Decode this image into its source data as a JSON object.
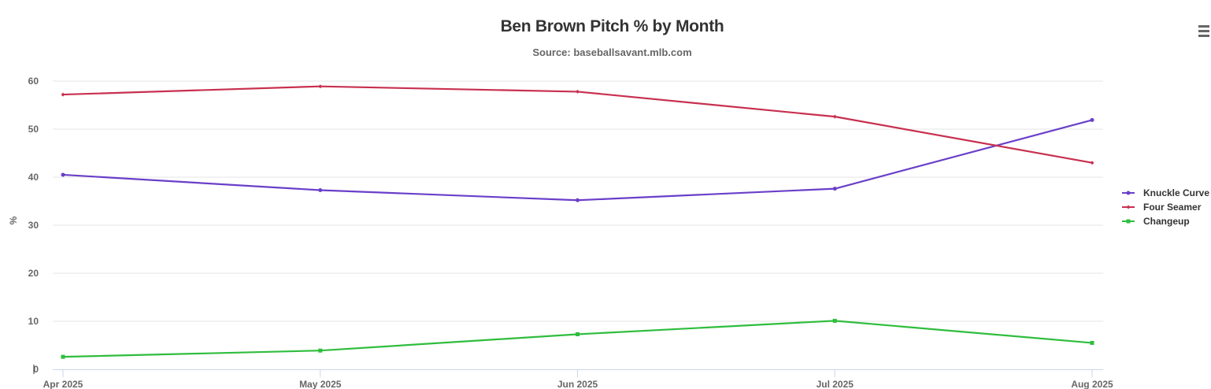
{
  "chart_data": {
    "type": "line",
    "title": "Ben Brown Pitch % by Month",
    "subtitle": "Source: baseballsavant.mlb.com",
    "ylabel": "%",
    "xlabel": "",
    "categories": [
      "Apr 2025",
      "May 2025",
      "Jun 2025",
      "Jul 2025",
      "Aug 2025"
    ],
    "ylim": [
      0,
      60
    ],
    "yticks": [
      0,
      10,
      20,
      30,
      40,
      50,
      60
    ],
    "grid": true,
    "legend": "right",
    "series": [
      {
        "name": "Knuckle Curve",
        "color": "#6a3fc9",
        "marker": "circle",
        "values": [
          40.5,
          37.3,
          35.2,
          37.6,
          51.9
        ]
      },
      {
        "name": "Four Seamer",
        "color": "#c8304f",
        "marker": "diamond",
        "values": [
          57.2,
          58.9,
          57.8,
          52.6,
          43.0
        ]
      },
      {
        "name": "Changeup",
        "color": "#2fbd3d",
        "marker": "square",
        "values": [
          2.6,
          3.9,
          7.3,
          10.1,
          5.5
        ]
      }
    ]
  },
  "ui": {
    "menu_icon": "hamburger-menu-icon"
  }
}
